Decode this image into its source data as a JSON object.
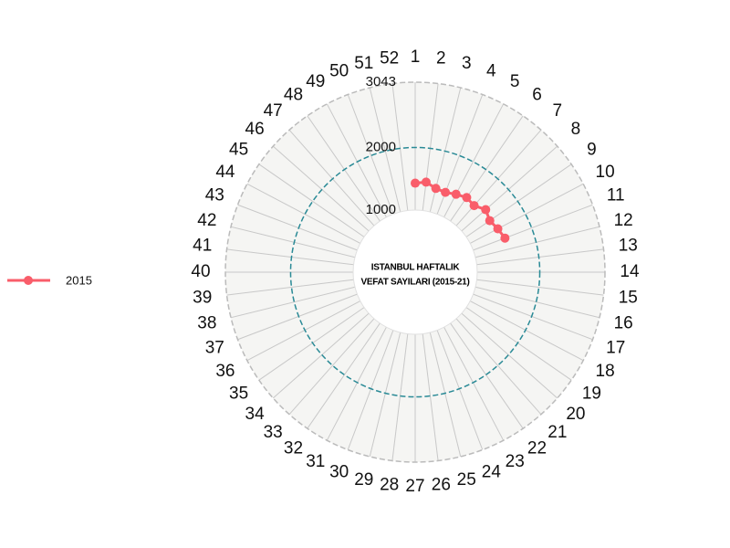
{
  "chart_data": {
    "type": "radial-line",
    "title": [
      "ISTANBUL HAFTALIK",
      "VEFAT SAYILARI (2015-21)"
    ],
    "categories": [
      "1",
      "2",
      "3",
      "4",
      "5",
      "6",
      "7",
      "8",
      "9",
      "10",
      "11",
      "12",
      "13",
      "14",
      "15",
      "16",
      "17",
      "18",
      "19",
      "20",
      "21",
      "22",
      "23",
      "24",
      "25",
      "26",
      "27",
      "28",
      "29",
      "30",
      "31",
      "32",
      "33",
      "34",
      "35",
      "36",
      "37",
      "38",
      "39",
      "40",
      "41",
      "42",
      "43",
      "44",
      "45",
      "46",
      "47",
      "48",
      "49",
      "50",
      "51",
      "52"
    ],
    "series": [
      {
        "name": "2015",
        "color": "#f95d6a",
        "values": [
          1430,
          1457,
          1386,
          1371,
          1414,
          1457,
          1429,
          1514,
          1457,
          1500,
          1543,
          null,
          null,
          null,
          null,
          null,
          null,
          null,
          null,
          null,
          null,
          null,
          null,
          null,
          null,
          null,
          null,
          null,
          null,
          null,
          null,
          null,
          null,
          null,
          null,
          null,
          null,
          null,
          null,
          null,
          null,
          null,
          null,
          null,
          null,
          null,
          null,
          null,
          null,
          null,
          null,
          null
        ]
      }
    ],
    "ylim": [
      1000,
      3043
    ],
    "yticks": [
      1000,
      2000,
      3043
    ],
    "grid": true,
    "legend": "left"
  }
}
